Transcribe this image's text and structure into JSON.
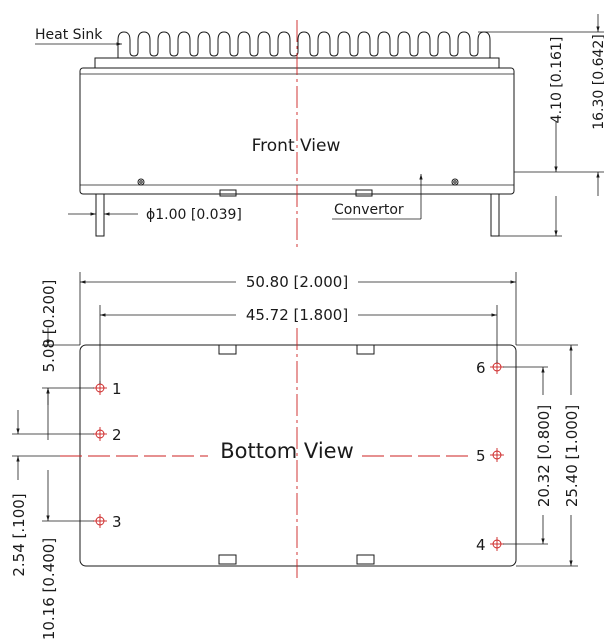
{
  "front": {
    "title": "Front View",
    "heat_sink_label": "Heat Sink",
    "convertor_label": "Convertor",
    "pin_diameter": "ϕ1.00 [0.039]",
    "dim_height": "4.10 [0.161]",
    "dim_total": "16.30 [0.642]"
  },
  "bottom": {
    "title": "Bottom View",
    "dim_width": "50.80 [2.000]",
    "dim_pin_span": "45.72 [1.800]",
    "dim_left_top": "5.08 [0.200]",
    "dim_pitch": "2.54 [.100]",
    "dim_left_span": "10.16 [0.400]",
    "dim_right_span": "20.32 [0.800]",
    "dim_height": "25.40 [1.000]",
    "pins": [
      {
        "label": "1"
      },
      {
        "label": "2"
      },
      {
        "label": "3"
      },
      {
        "label": "4"
      },
      {
        "label": "5"
      },
      {
        "label": "6"
      }
    ]
  },
  "colors": {
    "line": "#1a1a1a",
    "centerline": "#cc2222"
  }
}
